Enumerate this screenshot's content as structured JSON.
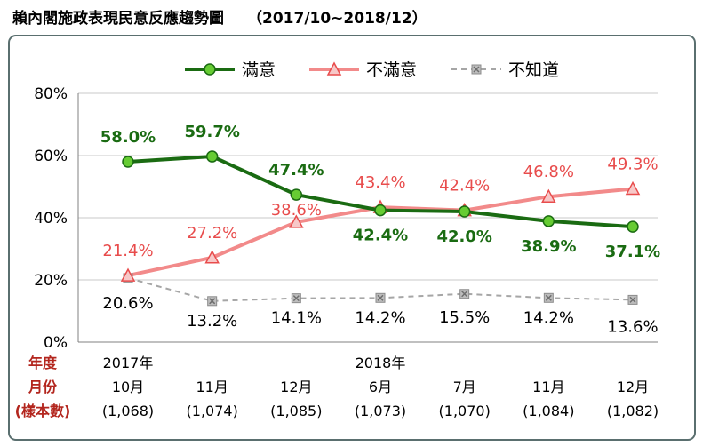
{
  "title": "賴內閣施政表現民意反應趨勢圖",
  "subtitle": "（2017/10~2018/12）",
  "row_labels": [
    "年度",
    "月份",
    "(樣本數)"
  ],
  "colors": {
    "satisfied": "#1a6b12",
    "satisfied_marker": "#66cc33",
    "dissatisfied": "#f28a8a",
    "dissatisfied_label": "#e84c4c",
    "dissatisfied_marker_fill": "#f7c8c8",
    "unknown": "#a6a6a6",
    "axis_label_red": "#b3261e",
    "frame": "#5a6f6f"
  },
  "chart_data": {
    "type": "line",
    "ylim": [
      0,
      80
    ],
    "yticks": [
      "0%",
      "20%",
      "40%",
      "60%",
      "80%"
    ],
    "ytick_values": [
      0,
      20,
      40,
      60,
      80
    ],
    "grid": "horizontal",
    "legend_position": "top-center",
    "categories": [
      {
        "year": "2017年",
        "month": "10月",
        "n": "(1,068)"
      },
      {
        "year": "",
        "month": "11月",
        "n": "(1,074)"
      },
      {
        "year": "",
        "month": "12月",
        "n": "(1,085)"
      },
      {
        "year": "2018年",
        "month": "6月",
        "n": "(1,073)"
      },
      {
        "year": "",
        "month": "7月",
        "n": "(1,070)"
      },
      {
        "year": "",
        "month": "11月",
        "n": "(1,084)"
      },
      {
        "year": "",
        "month": "12月",
        "n": "(1,082)"
      }
    ],
    "series": [
      {
        "name": "滿意",
        "values": [
          58.0,
          59.7,
          47.4,
          42.4,
          42.0,
          38.9,
          37.1
        ],
        "labels": [
          "58.0%",
          "59.7%",
          "47.4%",
          "42.4%",
          "42.0%",
          "38.9%",
          "37.1%"
        ]
      },
      {
        "name": "不滿意",
        "values": [
          21.4,
          27.2,
          38.6,
          43.4,
          42.4,
          46.8,
          49.3
        ],
        "labels": [
          "21.4%",
          "27.2%",
          "38.6%",
          "43.4%",
          "42.4%",
          "46.8%",
          "49.3%"
        ]
      },
      {
        "name": "不知道",
        "values": [
          20.6,
          13.2,
          14.1,
          14.2,
          15.5,
          14.2,
          13.6
        ],
        "labels": [
          "20.6%",
          "13.2%",
          "14.1%",
          "14.2%",
          "15.5%",
          "14.2%",
          "13.6%"
        ]
      }
    ]
  }
}
